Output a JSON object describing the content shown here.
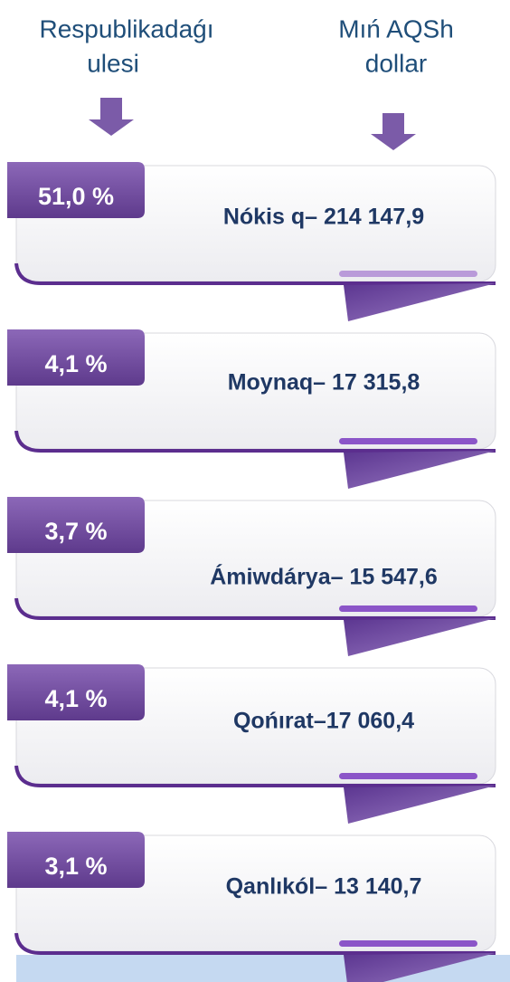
{
  "header": {
    "left": [
      "Respublikadaǵı",
      "ulesi"
    ],
    "right": [
      "Mıń AQSh",
      "dollar"
    ]
  },
  "items": [
    {
      "percent": "51,0 %",
      "label": "Nókis q– 214 147,9"
    },
    {
      "percent": "4,1 %",
      "label": "Moynaq– 17 315,8"
    },
    {
      "percent": "3,7 %",
      "label": "Ámiwdárya– 15 547,6"
    },
    {
      "percent": "4,1 %",
      "label": "Qońırat–17 060,4"
    },
    {
      "percent": "3,1 %",
      "label": "Qanlıkól– 13 140,7"
    }
  ]
}
